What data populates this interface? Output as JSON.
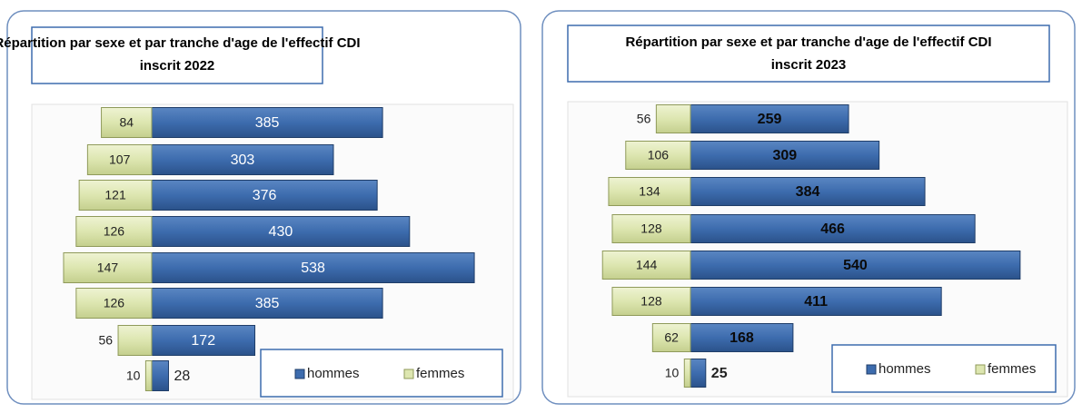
{
  "chart_data": [
    {
      "type": "bar",
      "orientation": "horizontal-diverging",
      "title": "Répartition par sexe et par tranche d'age de l'effectif CDI inscrit 2022",
      "series": [
        {
          "name": "hommes",
          "color": "#3d6cae",
          "values": [
            385,
            303,
            376,
            430,
            538,
            385,
            172,
            28
          ]
        },
        {
          "name": "femmes",
          "color": "#dde6b0",
          "values": [
            84,
            107,
            121,
            126,
            147,
            126,
            56,
            10
          ]
        }
      ],
      "legend": "lower right"
    },
    {
      "type": "bar",
      "orientation": "horizontal-diverging",
      "title": "Répartition par sexe et par tranche d'age de l'effectif CDI inscrit 2023",
      "series": [
        {
          "name": "hommes",
          "color": "#3d6cae",
          "values": [
            259,
            309,
            384,
            466,
            540,
            411,
            168,
            25
          ]
        },
        {
          "name": "femmes",
          "color": "#dde6b0",
          "values": [
            56,
            106,
            134,
            128,
            144,
            128,
            62,
            10
          ]
        }
      ],
      "legend": "lower right"
    }
  ]
}
